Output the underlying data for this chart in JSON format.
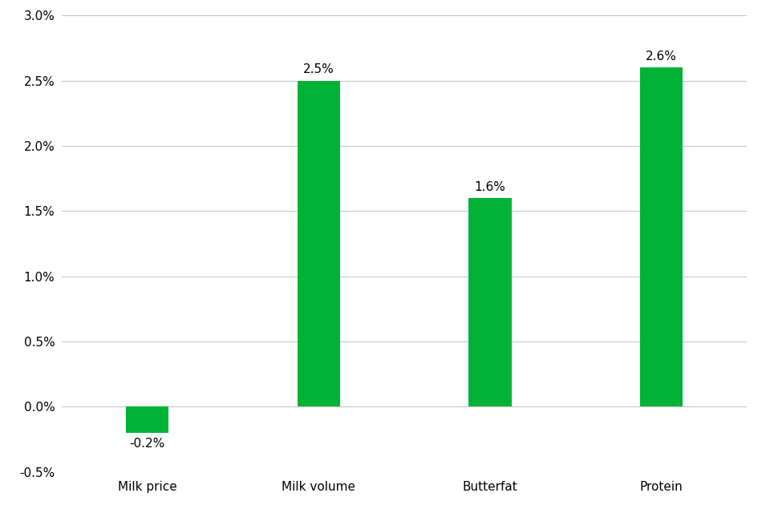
{
  "categories": [
    "Milk price",
    "Milk volume",
    "Butterfat",
    "Protein"
  ],
  "values": [
    -0.002,
    0.025,
    0.016,
    0.026
  ],
  "labels": [
    "-0.2%",
    "2.5%",
    "1.6%",
    "2.6%"
  ],
  "bar_color": "#00b336",
  "background_color": "#ffffff",
  "grid_color": "#c8c8c8",
  "ylim": [
    -0.005,
    0.03
  ],
  "yticks": [
    -0.005,
    0.0,
    0.005,
    0.01,
    0.015,
    0.02,
    0.025,
    0.03
  ],
  "ytick_labels": [
    "-0.5%",
    "0.0%",
    "0.5%",
    "1.0%",
    "1.5%",
    "2.0%",
    "2.5%",
    "3.0%"
  ],
  "label_fontsize": 11,
  "tick_fontsize": 11,
  "bar_width": 0.25
}
